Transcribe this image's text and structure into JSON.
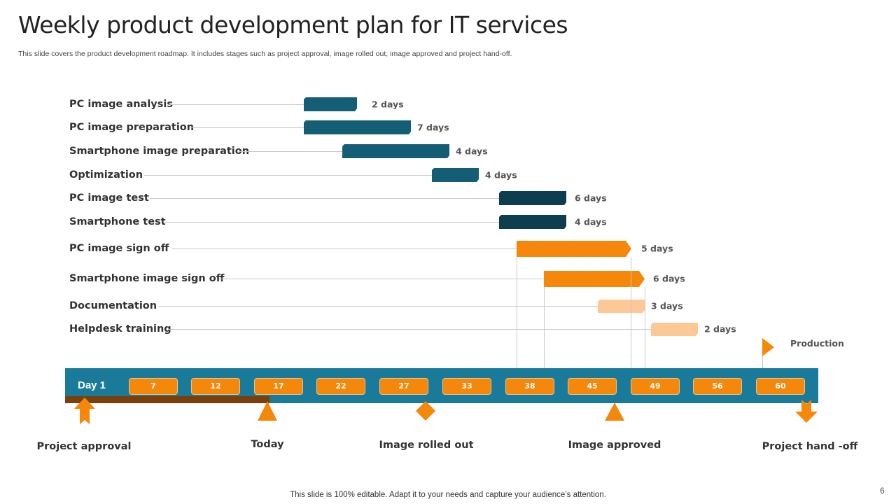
{
  "title": "Weekly product development plan for IT services",
  "subtitle": "This slide covers the product development roadmap. It includes stages such as project approval, image rolled out, image approved and project hand-off.",
  "colors": {
    "teal": "#135e75",
    "dark_teal": "#0c3e4f",
    "orange": "#f5870a",
    "peach": "#fbc896",
    "band": "#1a7a99",
    "elapsed": "#7a3f0a"
  },
  "tasks": [
    {
      "label": "PC image analysis",
      "duration": "2 days",
      "color": "#135e75"
    },
    {
      "label": "PC image preparation",
      "duration": "7 days",
      "color": "#135e75"
    },
    {
      "label": "Smartphone image preparation",
      "duration": "4 days",
      "color": "#135e75"
    },
    {
      "label": "Optimization",
      "duration": "4 days",
      "color": "#135e75"
    },
    {
      "label": "PC image test",
      "duration": "6 days",
      "color": "#0c3e4f"
    },
    {
      "label": "Smartphone test",
      "duration": "4 days",
      "color": "#0c3e4f"
    },
    {
      "label": "PC image sign off",
      "duration": "5 days",
      "color": "#f5870a"
    },
    {
      "label": "Smartphone image sign off",
      "duration": "6 days",
      "color": "#f5870a"
    },
    {
      "label": "Documentation",
      "duration": "3 days",
      "color": "#fbc896"
    },
    {
      "label": "Helpdesk training",
      "duration": "2 days",
      "color": "#fbc896"
    }
  ],
  "timeline": {
    "start_label": "Day 1",
    "ticks": [
      "7",
      "12",
      "17",
      "22",
      "27",
      "33",
      "38",
      "45",
      "49",
      "56",
      "60"
    ],
    "production_label": "Production"
  },
  "milestones": [
    {
      "label": "Project approval",
      "icon": "up-arrow-icon"
    },
    {
      "label": "Today",
      "icon": "triangle-icon"
    },
    {
      "label": "Image rolled out",
      "icon": "diamond-icon"
    },
    {
      "label": "Image approved",
      "icon": "triangle-icon"
    },
    {
      "label": "Project hand -off",
      "icon": "down-arrow-icon"
    }
  ],
  "footer": "This slide is 100% editable. Adapt it to your needs and capture your audience’s attention.",
  "page_number": "6"
}
